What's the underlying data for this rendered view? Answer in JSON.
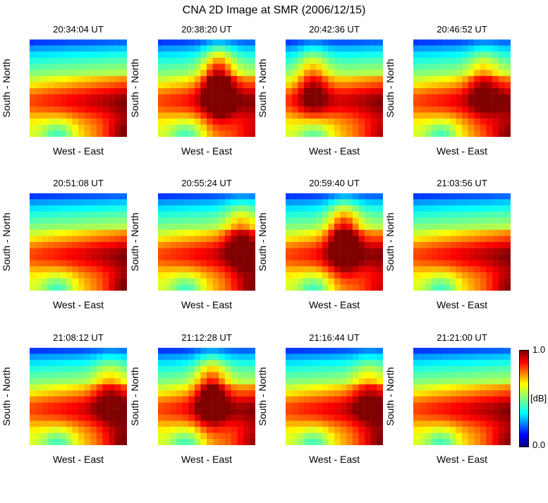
{
  "chart_data": {
    "type": "heatmap",
    "title": "CNA 2D Image at SMR (2006/12/15)",
    "xlabel": "West - East",
    "ylabel": "South - North",
    "colorbar": {
      "label": "[dB]",
      "min_label": "1.0",
      "max_label": "0.0",
      "min": 0.0,
      "max": 1.0,
      "colormap": "jet"
    },
    "grid_size": 16,
    "panels": [
      {
        "time": "20:34:04 UT",
        "shape": "base",
        "dome_x": 0.0,
        "dome_strength": 0.0,
        "corner": 1.0
      },
      {
        "time": "20:38:20 UT",
        "shape": "dome",
        "dome_x": 0.62,
        "dome_strength": 1.0,
        "corner": 0.6
      },
      {
        "time": "20:42:36 UT",
        "shape": "dome",
        "dome_x": 0.28,
        "dome_strength": 0.6,
        "corner": 0.7
      },
      {
        "time": "20:46:52 UT",
        "shape": "dome",
        "dome_x": 0.72,
        "dome_strength": 0.45,
        "corner": 0.9
      },
      {
        "time": "20:51:08 UT",
        "shape": "base",
        "dome_x": 0.0,
        "dome_strength": 0.0,
        "corner": 1.0
      },
      {
        "time": "20:55:24 UT",
        "shape": "dome",
        "dome_x": 0.85,
        "dome_strength": 0.5,
        "corner": 0.9
      },
      {
        "time": "20:59:40 UT",
        "shape": "dome",
        "dome_x": 0.6,
        "dome_strength": 0.9,
        "corner": 0.6
      },
      {
        "time": "21:03:56 UT",
        "shape": "base",
        "dome_x": 0.0,
        "dome_strength": 0.0,
        "corner": 0.9
      },
      {
        "time": "21:08:12 UT",
        "shape": "dome",
        "dome_x": 0.82,
        "dome_strength": 0.4,
        "corner": 1.0
      },
      {
        "time": "21:12:28 UT",
        "shape": "dome",
        "dome_x": 0.55,
        "dome_strength": 0.8,
        "corner": 0.8
      },
      {
        "time": "21:16:44 UT",
        "shape": "dome",
        "dome_x": 0.85,
        "dome_strength": 0.35,
        "corner": 0.9
      },
      {
        "time": "21:21:00 UT",
        "shape": "base",
        "dome_x": 0.0,
        "dome_strength": 0.0,
        "corner": 0.9
      }
    ]
  }
}
